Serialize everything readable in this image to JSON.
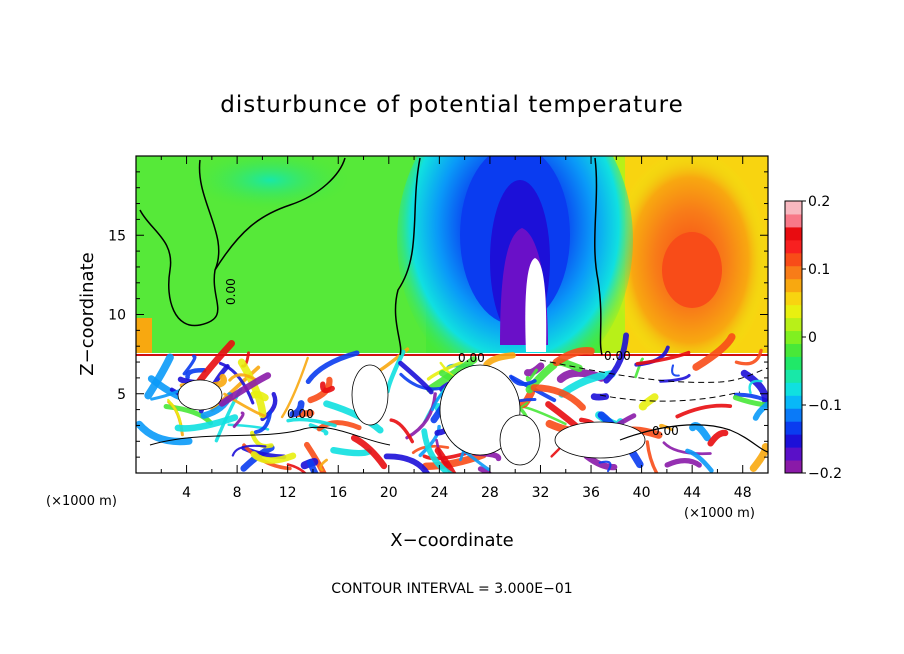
{
  "chart_data": {
    "type": "heatmap",
    "title": "disturbunce of potential temperature",
    "xlabel": "X−coordinate",
    "ylabel": "Z−coordinate",
    "x_unit": "(×1000 m)",
    "y_unit": "(×1000 m)",
    "xlim": [
      0,
      50
    ],
    "ylim": [
      0,
      20
    ],
    "x_ticks": [
      "4",
      "8",
      "12",
      "16",
      "20",
      "24",
      "28",
      "32",
      "36",
      "40",
      "44",
      "48"
    ],
    "y_ticks": [
      "5",
      "10",
      "15"
    ],
    "colorbar": {
      "range": [
        -0.2,
        0.2
      ],
      "tick_labels": [
        "0.2",
        "0.1",
        "0",
        "−0.1",
        "−0.2"
      ],
      "colors": [
        "#8a1aa8",
        "#5a10c8",
        "#1c10d8",
        "#0a3cf0",
        "#0a7af8",
        "#08b8f8",
        "#10e0e0",
        "#18e8a8",
        "#20e868",
        "#48e838",
        "#80f020",
        "#b8f018",
        "#e8f010",
        "#f8d410",
        "#f8a810",
        "#f87c18",
        "#f84c18",
        "#f82020",
        "#e80c10",
        "#f87888",
        "#f8b8c0"
      ]
    },
    "contour_labels": [
      "0.00",
      "0.00",
      "0.00",
      "0.00",
      "0.00"
    ],
    "contour_interval_text": "CONTOUR INTERVAL = 3.000E−01",
    "inversion_height_z": 7.4,
    "upper_field_description_values": {
      "left_region": 0.02,
      "cold_plume_center_x": 29.5,
      "cold_plume_min": -0.2,
      "warm_region_center_x": 44,
      "warm_region_max": 0.15
    }
  }
}
